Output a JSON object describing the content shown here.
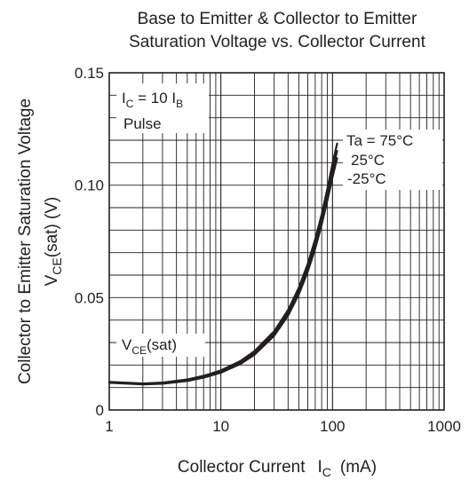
{
  "chart_data": {
    "type": "line",
    "title_line1": "Base to Emitter & Collector to Emitter",
    "title_line2": "Saturation Voltage vs. Collector Current",
    "xlabel": "Collector Current",
    "xlabel_var": "I",
    "xlabel_sub": "C",
    "xlabel_unit": "(mA)",
    "ylabel_line1": "Collector to Emitter Saturation Voltage",
    "ylabel_var": "V",
    "ylabel_sub": "CE",
    "ylabel_suffix": "(sat)  (V)",
    "x_scale": "log",
    "xlim": [
      1,
      1000
    ],
    "ylim": [
      0,
      0.15
    ],
    "x_ticks": [
      "1",
      "10",
      "100",
      "1000"
    ],
    "y_ticks": [
      "0",
      "0.05",
      "0.10",
      "0.15"
    ],
    "grid": true,
    "annotations": {
      "condition_var": "I",
      "condition_sub": "C",
      "condition_mid": " = 10 I",
      "condition_sub2": "B",
      "pulse": "Pulse",
      "curve_label_var": "V",
      "curve_label_sub": "CE",
      "curve_label_suffix": "(sat)"
    },
    "series": [
      {
        "name": "Ta = 75°C",
        "x": [
          1,
          2,
          3,
          5,
          7,
          10,
          15,
          20,
          30,
          40,
          50,
          60,
          70,
          80,
          90,
          100,
          110
        ],
        "y": [
          0.0125,
          0.0118,
          0.0122,
          0.0136,
          0.0152,
          0.0176,
          0.0218,
          0.0262,
          0.035,
          0.0445,
          0.0545,
          0.065,
          0.076,
          0.087,
          0.0985,
          0.1095,
          0.1185
        ]
      },
      {
        "name": "25°C",
        "x": [
          1,
          2,
          3,
          5,
          7,
          10,
          15,
          20,
          30,
          40,
          50,
          60,
          70,
          80,
          90,
          100,
          110
        ],
        "y": [
          0.0123,
          0.0116,
          0.0119,
          0.0132,
          0.0148,
          0.0171,
          0.0212,
          0.0254,
          0.034,
          0.0432,
          0.053,
          0.0632,
          0.0738,
          0.0848,
          0.0958,
          0.1065,
          0.1152
        ]
      },
      {
        "name": "-25°C",
        "x": [
          1,
          2,
          3,
          5,
          7,
          10,
          15,
          20,
          30,
          40,
          50,
          60,
          70,
          80,
          90,
          100,
          110
        ],
        "y": [
          0.0121,
          0.0114,
          0.0117,
          0.0129,
          0.0144,
          0.0166,
          0.0205,
          0.0246,
          0.033,
          0.042,
          0.0515,
          0.0615,
          0.0718,
          0.0825,
          0.0932,
          0.1035,
          0.112
        ]
      }
    ]
  }
}
